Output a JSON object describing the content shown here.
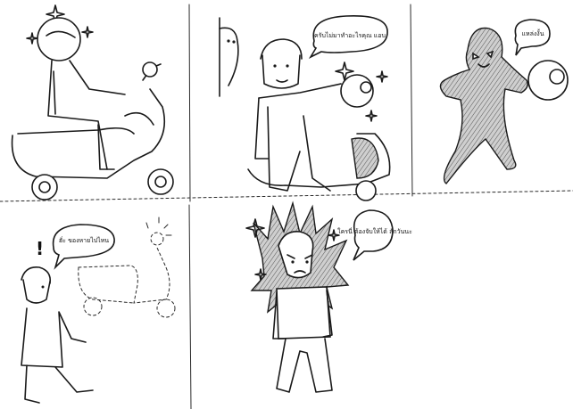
{
  "panels": [
    {
      "id": "panel-1",
      "speech": null
    },
    {
      "id": "panel-2",
      "speech": "ครับไม่มาทำอะไรคุณ แอบ"
    },
    {
      "id": "panel-3",
      "speech": "แหล่งงั้น"
    },
    {
      "id": "panel-4",
      "speech": "ฮั่ะ ของหายไปไหน",
      "exclaim": "!"
    },
    {
      "id": "panel-5",
      "speech": "ใครนี่ ต้องจับให้ได้ สักวันนะ"
    }
  ]
}
